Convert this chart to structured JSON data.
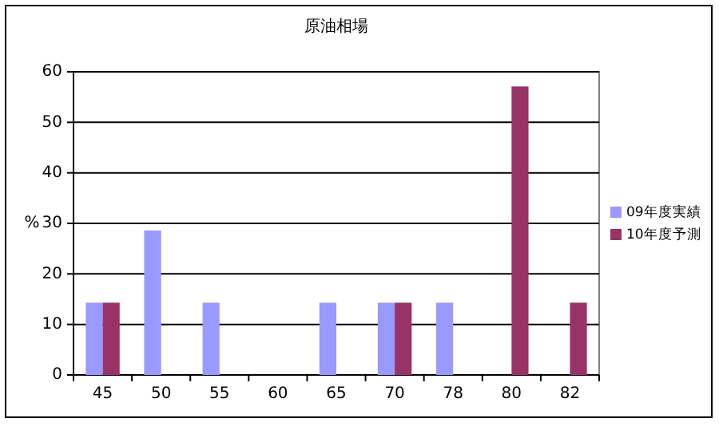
{
  "chart_data": {
    "type": "bar",
    "title": "原油相場",
    "ylabel": "%",
    "categories": [
      "45",
      "50",
      "55",
      "60",
      "65",
      "70",
      "78",
      "80",
      "82"
    ],
    "series": [
      {
        "name": "09年度実績",
        "color": "#9999ff",
        "values": [
          14.3,
          28.6,
          14.3,
          0,
          14.3,
          14.3,
          14.3,
          0,
          0
        ]
      },
      {
        "name": "10年度予測",
        "color": "#993366",
        "values": [
          14.3,
          0,
          0,
          0,
          0,
          14.3,
          0,
          57.1,
          14.3
        ]
      }
    ],
    "ylim": [
      0,
      60
    ],
    "yticks": [
      0,
      10,
      20,
      30,
      40,
      50,
      60
    ],
    "grid": "y",
    "legend": "right"
  }
}
